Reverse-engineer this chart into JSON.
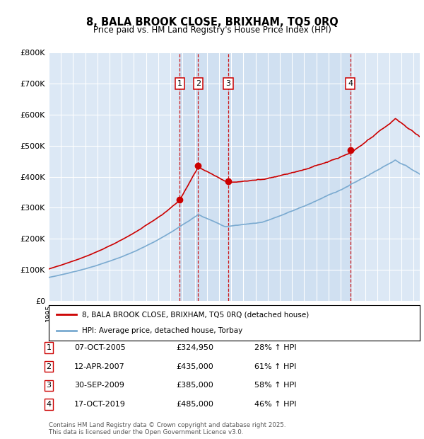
{
  "title": "8, BALA BROOK CLOSE, BRIXHAM, TQ5 0RQ",
  "subtitle": "Price paid vs. HM Land Registry's House Price Index (HPI)",
  "bg_color": "#dce8f5",
  "plot_bg_color_main": "#dce8f5",
  "plot_bg_color_shade": "#ccddf0",
  "ylim": [
    0,
    800000
  ],
  "yticks": [
    0,
    100000,
    200000,
    300000,
    400000,
    500000,
    600000,
    700000,
    800000
  ],
  "ytick_labels": [
    "£0",
    "£100K",
    "£200K",
    "£300K",
    "£400K",
    "£500K",
    "£600K",
    "£700K",
    "£800K"
  ],
  "sale_dates_dec": [
    2005.76,
    2007.28,
    2009.75,
    2019.79
  ],
  "sale_prices": [
    324950,
    435000,
    385000,
    485000
  ],
  "sale_labels": [
    "1",
    "2",
    "3",
    "4"
  ],
  "vline_color": "#cc0000",
  "sale_color": "#cc0000",
  "hpi_color": "#7aaad0",
  "legend_house_label": "8, BALA BROOK CLOSE, BRIXHAM, TQ5 0RQ (detached house)",
  "legend_hpi_label": "HPI: Average price, detached house, Torbay",
  "table_entries": [
    {
      "num": "1",
      "date": "07-OCT-2005",
      "price": "£324,950",
      "pct": "28% ↑ HPI"
    },
    {
      "num": "2",
      "date": "12-APR-2007",
      "price": "£435,000",
      "pct": "61% ↑ HPI"
    },
    {
      "num": "3",
      "date": "30-SEP-2009",
      "price": "£385,000",
      "pct": "58% ↑ HPI"
    },
    {
      "num": "4",
      "date": "17-OCT-2019",
      "price": "£485,000",
      "pct": "46% ↑ HPI"
    }
  ],
  "footer": "Contains HM Land Registry data © Crown copyright and database right 2025.\nThis data is licensed under the Open Government Licence v3.0.",
  "xstart": 1995.0,
  "xend": 2025.5
}
